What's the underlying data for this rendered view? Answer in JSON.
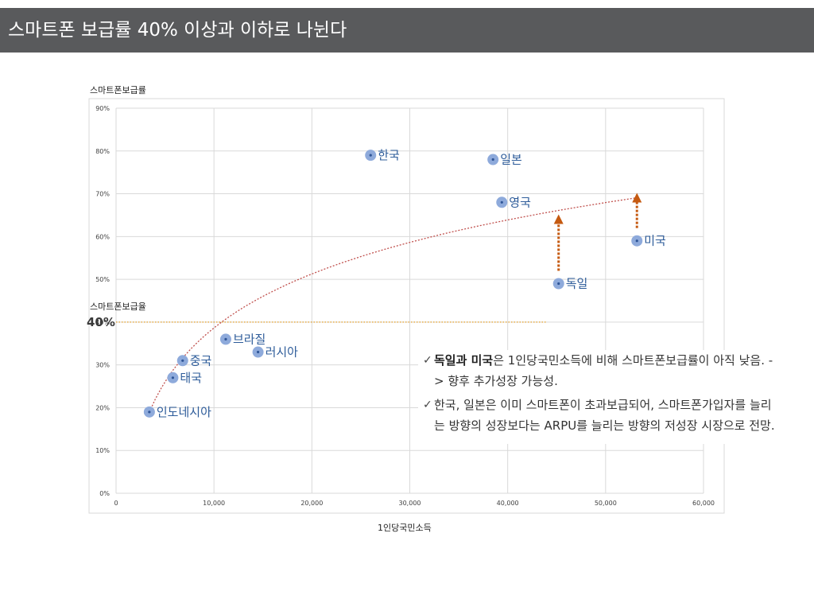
{
  "page": {
    "title": "스마트폰 보급률 40% 이상과 이하로 나뉜다"
  },
  "chart_data": {
    "type": "scatter",
    "ylabel": "스마트폰보급률",
    "xlabel": "1인당국민소득",
    "xlim": [
      0,
      60000
    ],
    "ylim": [
      0,
      90
    ],
    "x_ticks": [
      0,
      10000,
      20000,
      30000,
      40000,
      50000,
      60000
    ],
    "x_tick_labels": [
      "0",
      "10,000",
      "20,000",
      "30,000",
      "40,000",
      "50,000",
      "60,000"
    ],
    "y_ticks": [
      0,
      10,
      20,
      30,
      40,
      50,
      60,
      70,
      80,
      90
    ],
    "y_tick_labels": [
      "0%",
      "10%",
      "20%",
      "30%",
      "40%",
      "50%",
      "60%",
      "70%",
      "80%",
      "90%"
    ],
    "grid": true,
    "points": [
      {
        "label": "인도네시아",
        "x": 3400,
        "y": 19
      },
      {
        "label": "태국",
        "x": 5800,
        "y": 27
      },
      {
        "label": "중국",
        "x": 6800,
        "y": 31
      },
      {
        "label": "브라질",
        "x": 11200,
        "y": 36
      },
      {
        "label": "러시아",
        "x": 14500,
        "y": 33
      },
      {
        "label": "한국",
        "x": 26000,
        "y": 79
      },
      {
        "label": "일본",
        "x": 38500,
        "y": 78
      },
      {
        "label": "영국",
        "x": 39400,
        "y": 68
      },
      {
        "label": "독일",
        "x": 45200,
        "y": 49
      },
      {
        "label": "미국",
        "x": 53200,
        "y": 59
      }
    ],
    "trendline": {
      "type": "logarithmic",
      "x_range": [
        3400,
        53000
      ],
      "y_range": [
        19,
        69
      ],
      "color": "#c0504d"
    },
    "threshold": {
      "label": "스마트폰보급율",
      "value_label": "40%",
      "y": 40,
      "x_end": 44000,
      "color": "#e9a227"
    },
    "arrows": [
      {
        "x": 45200,
        "from_y": 52,
        "to_y": 65
      },
      {
        "x": 53200,
        "from_y": 62,
        "to_y": 70
      }
    ],
    "colors": {
      "point_fill": "#8eaadb",
      "point_center": "#2f5597",
      "point_label": "#2e5c9a",
      "arrow": "#c55a11",
      "grid": "#d9d9d9",
      "title_bar": "#595a5c"
    }
  },
  "notes": {
    "check_symbol": "✓",
    "note1_bold": "독일과 미국",
    "note1_text": "은 1인당국민소득에 비해 스마트폰보급률이 아직 낮음. -> 향후 추가성장 가능성.",
    "note2_text": "한국, 일본은 이미 스마트폰이 초과보급되어, 스마트폰가입자를 늘리는 방향의 성장보다는 ARPU를 늘리는 방향의 저성장 시장으로 전망."
  }
}
